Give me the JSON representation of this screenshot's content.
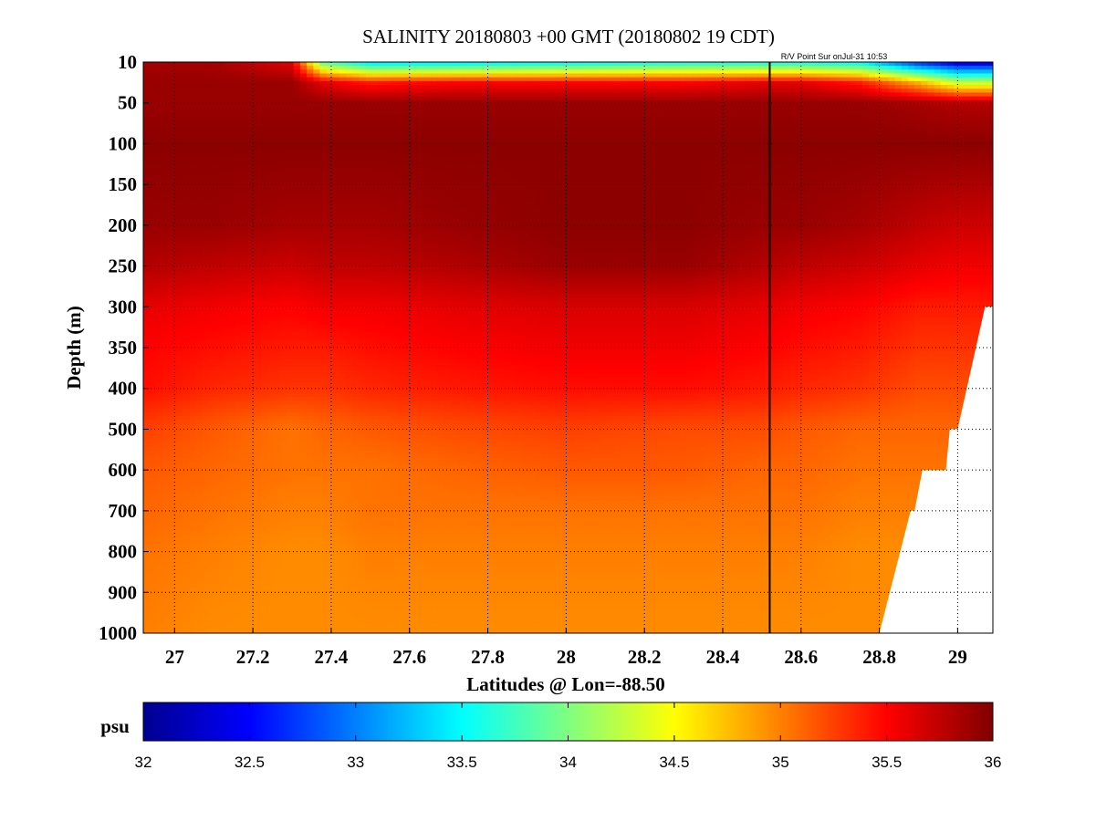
{
  "chart_data": {
    "type": "heatmap",
    "title": "SALINITY 20180803 +00 GMT (20180802 19 CDT)",
    "annotation": "R/V Point Sur onJul-31 10:53",
    "xlabel": "Latitudes @ Lon=-88.50",
    "ylabel": "Depth (m)",
    "xlim": [
      26.92,
      29.09
    ],
    "x_ticks": [
      27,
      27.2,
      27.4,
      27.6,
      27.8,
      28,
      28.2,
      28.4,
      28.6,
      28.8,
      29
    ],
    "x_tick_labels": [
      "27",
      "27.2",
      "27.4",
      "27.6",
      "27.8",
      "28",
      "28.2",
      "28.4",
      "28.6",
      "28.8",
      "29"
    ],
    "y_ticks": [
      10,
      50,
      100,
      150,
      200,
      250,
      300,
      350,
      400,
      500,
      600,
      700,
      800,
      900,
      1000
    ],
    "y_tick_labels": [
      "10",
      "50",
      "100",
      "150",
      "200",
      "250",
      "300",
      "350",
      "400",
      "500",
      "600",
      "700",
      "800",
      "900",
      "1000"
    ],
    "grid": true,
    "station_line_lat": 28.52,
    "colorbar": {
      "label": "psu",
      "range": [
        32,
        36
      ],
      "colormap": "jet",
      "ticks": [
        32,
        32.5,
        33,
        33.5,
        34,
        34.5,
        35,
        35.5,
        36
      ],
      "tick_labels": [
        "32",
        "32.5",
        "33",
        "33.5",
        "34",
        "34.5",
        "35",
        "35.5",
        "36"
      ]
    },
    "bottom_profile": {
      "lat": [
        28.8,
        28.88,
        28.89,
        28.91,
        28.93,
        28.97,
        28.98,
        29.0,
        29.07,
        29.09
      ],
      "depth": [
        1000,
        700,
        700,
        600,
        600,
        600,
        500,
        500,
        300,
        300
      ]
    },
    "salinity_field": {
      "lat": [
        26.92,
        27.1,
        27.3,
        27.38,
        27.5,
        27.7,
        28.0,
        28.3,
        28.5,
        28.6,
        28.75,
        28.9,
        29.0,
        29.09
      ],
      "depth": [
        10,
        30,
        50,
        100,
        200,
        250,
        300,
        350,
        400,
        500,
        600,
        700,
        800,
        1000
      ],
      "values": [
        [
          35.85,
          35.85,
          35.6,
          33.8,
          33.3,
          33.3,
          33.4,
          33.5,
          33.5,
          33.5,
          33.4,
          32.6,
          32.3,
          32.3
        ],
        [
          35.9,
          35.9,
          35.9,
          35.6,
          35.4,
          35.5,
          35.5,
          35.5,
          35.6,
          35.6,
          35.4,
          34.8,
          34.3,
          34.3
        ],
        [
          35.9,
          35.9,
          35.9,
          35.9,
          35.9,
          35.9,
          35.9,
          35.9,
          35.9,
          35.9,
          35.9,
          35.85,
          35.8,
          35.8
        ],
        [
          35.95,
          35.95,
          35.95,
          35.95,
          35.95,
          35.95,
          35.95,
          35.95,
          35.95,
          35.95,
          35.95,
          35.95,
          35.95,
          35.95
        ],
        [
          35.9,
          35.9,
          35.85,
          35.85,
          35.85,
          35.9,
          35.95,
          35.95,
          35.9,
          35.9,
          35.85,
          35.75,
          35.7,
          35.7
        ],
        [
          35.8,
          35.75,
          35.7,
          35.75,
          35.75,
          35.8,
          35.9,
          35.9,
          35.8,
          35.75,
          35.7,
          35.6,
          35.55,
          35.55
        ],
        [
          35.6,
          35.55,
          35.5,
          35.55,
          35.55,
          35.6,
          35.65,
          35.65,
          35.6,
          35.55,
          35.5,
          35.4,
          35.4,
          35.4
        ],
        [
          35.5,
          35.45,
          35.4,
          35.4,
          35.45,
          35.5,
          35.55,
          35.55,
          35.5,
          35.45,
          35.4,
          35.3,
          35.3,
          35.3
        ],
        [
          35.45,
          35.35,
          35.3,
          35.3,
          35.35,
          35.4,
          35.45,
          35.45,
          35.4,
          35.35,
          35.3,
          35.2,
          35.2,
          35.2
        ],
        [
          35.25,
          35.15,
          35.05,
          35.1,
          35.15,
          35.2,
          35.25,
          35.2,
          35.2,
          35.15,
          35.1,
          35.1,
          35.1,
          35.1
        ],
        [
          35.15,
          35.1,
          35.05,
          35.05,
          35.05,
          35.1,
          35.15,
          35.15,
          35.1,
          35.1,
          35.05,
          35.05,
          35.05,
          35.05
        ],
        [
          35.1,
          35.05,
          35.0,
          35.0,
          35.05,
          35.05,
          35.05,
          35.05,
          35.05,
          35.05,
          35.0,
          35.0,
          35.0,
          35.0
        ],
        [
          35.05,
          35.0,
          34.95,
          34.95,
          35.0,
          35.0,
          35.0,
          35.0,
          35.0,
          35.0,
          34.95,
          34.95,
          34.95,
          34.95
        ],
        [
          35.0,
          34.95,
          34.95,
          34.95,
          34.95,
          34.95,
          34.95,
          34.95,
          34.95,
          34.95,
          34.95,
          34.95,
          34.95,
          34.95
        ]
      ]
    }
  }
}
